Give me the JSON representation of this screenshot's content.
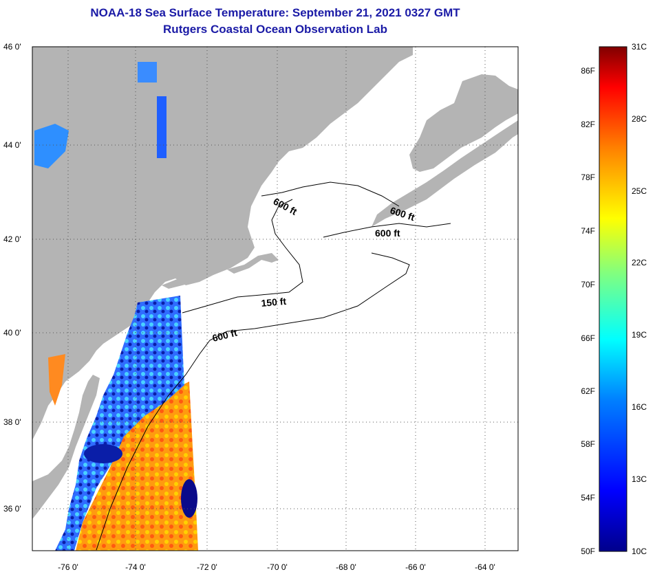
{
  "title": {
    "line1": "NOAA-18 Sea Surface Temperature:  September 21, 2021 0327 GMT",
    "line2": "Rutgers Coastal Ocean Observation Lab"
  },
  "map": {
    "lat_labels": [
      "46 0'",
      "44 0'",
      "42 0'",
      "40 0'",
      "38 0'",
      "36 0'"
    ],
    "lon_labels": [
      "-76 0'",
      "-74 0'",
      "-72 0'",
      "-70 0'",
      "-68 0'",
      "-66 0'",
      "-64 0'"
    ],
    "contour_labels": [
      "600 ft",
      "600 ft",
      "600 ft",
      "150 ft",
      "600 ft"
    ]
  },
  "colorbar": {
    "fahrenheit": [
      "86F",
      "82F",
      "78F",
      "74F",
      "70F",
      "66F",
      "62F",
      "58F",
      "54F",
      "50F"
    ],
    "celsius": [
      "31C",
      "28C",
      "25C",
      "22C",
      "19C",
      "16C",
      "13C",
      "10C"
    ]
  },
  "colors": {
    "land": "#b4b4b4",
    "ocean": "#ffffff",
    "title": "#1a1aa6",
    "scale": [
      "#00008b",
      "#0000ff",
      "#0080ff",
      "#00ffff",
      "#80ff80",
      "#ffff00",
      "#ff8000",
      "#ff0000",
      "#800000"
    ]
  }
}
